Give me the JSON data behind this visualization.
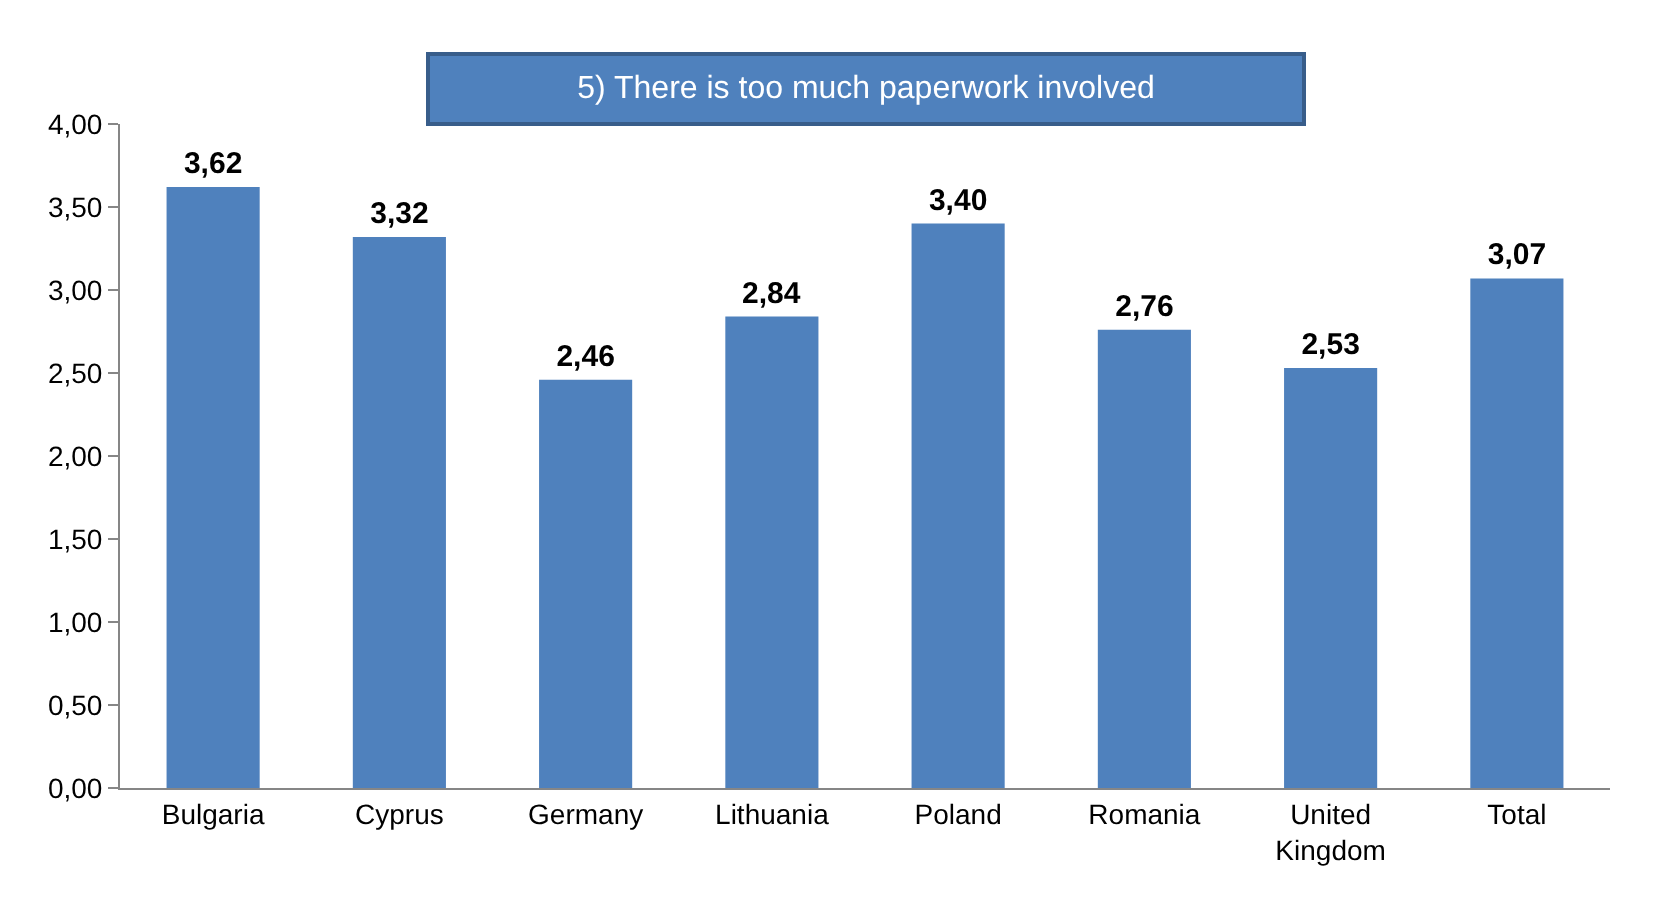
{
  "chart_data": {
    "type": "bar",
    "title": "5) There is too much paperwork involved",
    "categories": [
      "Bulgaria",
      "Cyprus",
      "Germany",
      "Lithuania",
      "Poland",
      "Romania",
      "United Kingdom",
      "Total"
    ],
    "values": [
      3.62,
      3.32,
      2.46,
      2.84,
      3.4,
      2.76,
      2.53,
      3.07
    ],
    "value_labels": [
      "3,62",
      "3,32",
      "2,46",
      "2,84",
      "3,40",
      "2,76",
      "2,53",
      "3,07"
    ],
    "color": "#4f81bd",
    "ylim": [
      0,
      4
    ],
    "yticks": [
      {
        "value": 0,
        "label": "0,00"
      },
      {
        "value": 0.5,
        "label": "0,50"
      },
      {
        "value": 1,
        "label": "1,00"
      },
      {
        "value": 1.5,
        "label": "1,50"
      },
      {
        "value": 2,
        "label": "2,00"
      },
      {
        "value": 2.5,
        "label": "2,50"
      },
      {
        "value": 3,
        "label": "3,00"
      },
      {
        "value": 3.5,
        "label": "3,50"
      },
      {
        "value": 4,
        "label": "4,00"
      }
    ],
    "grid": false,
    "legend": false
  }
}
